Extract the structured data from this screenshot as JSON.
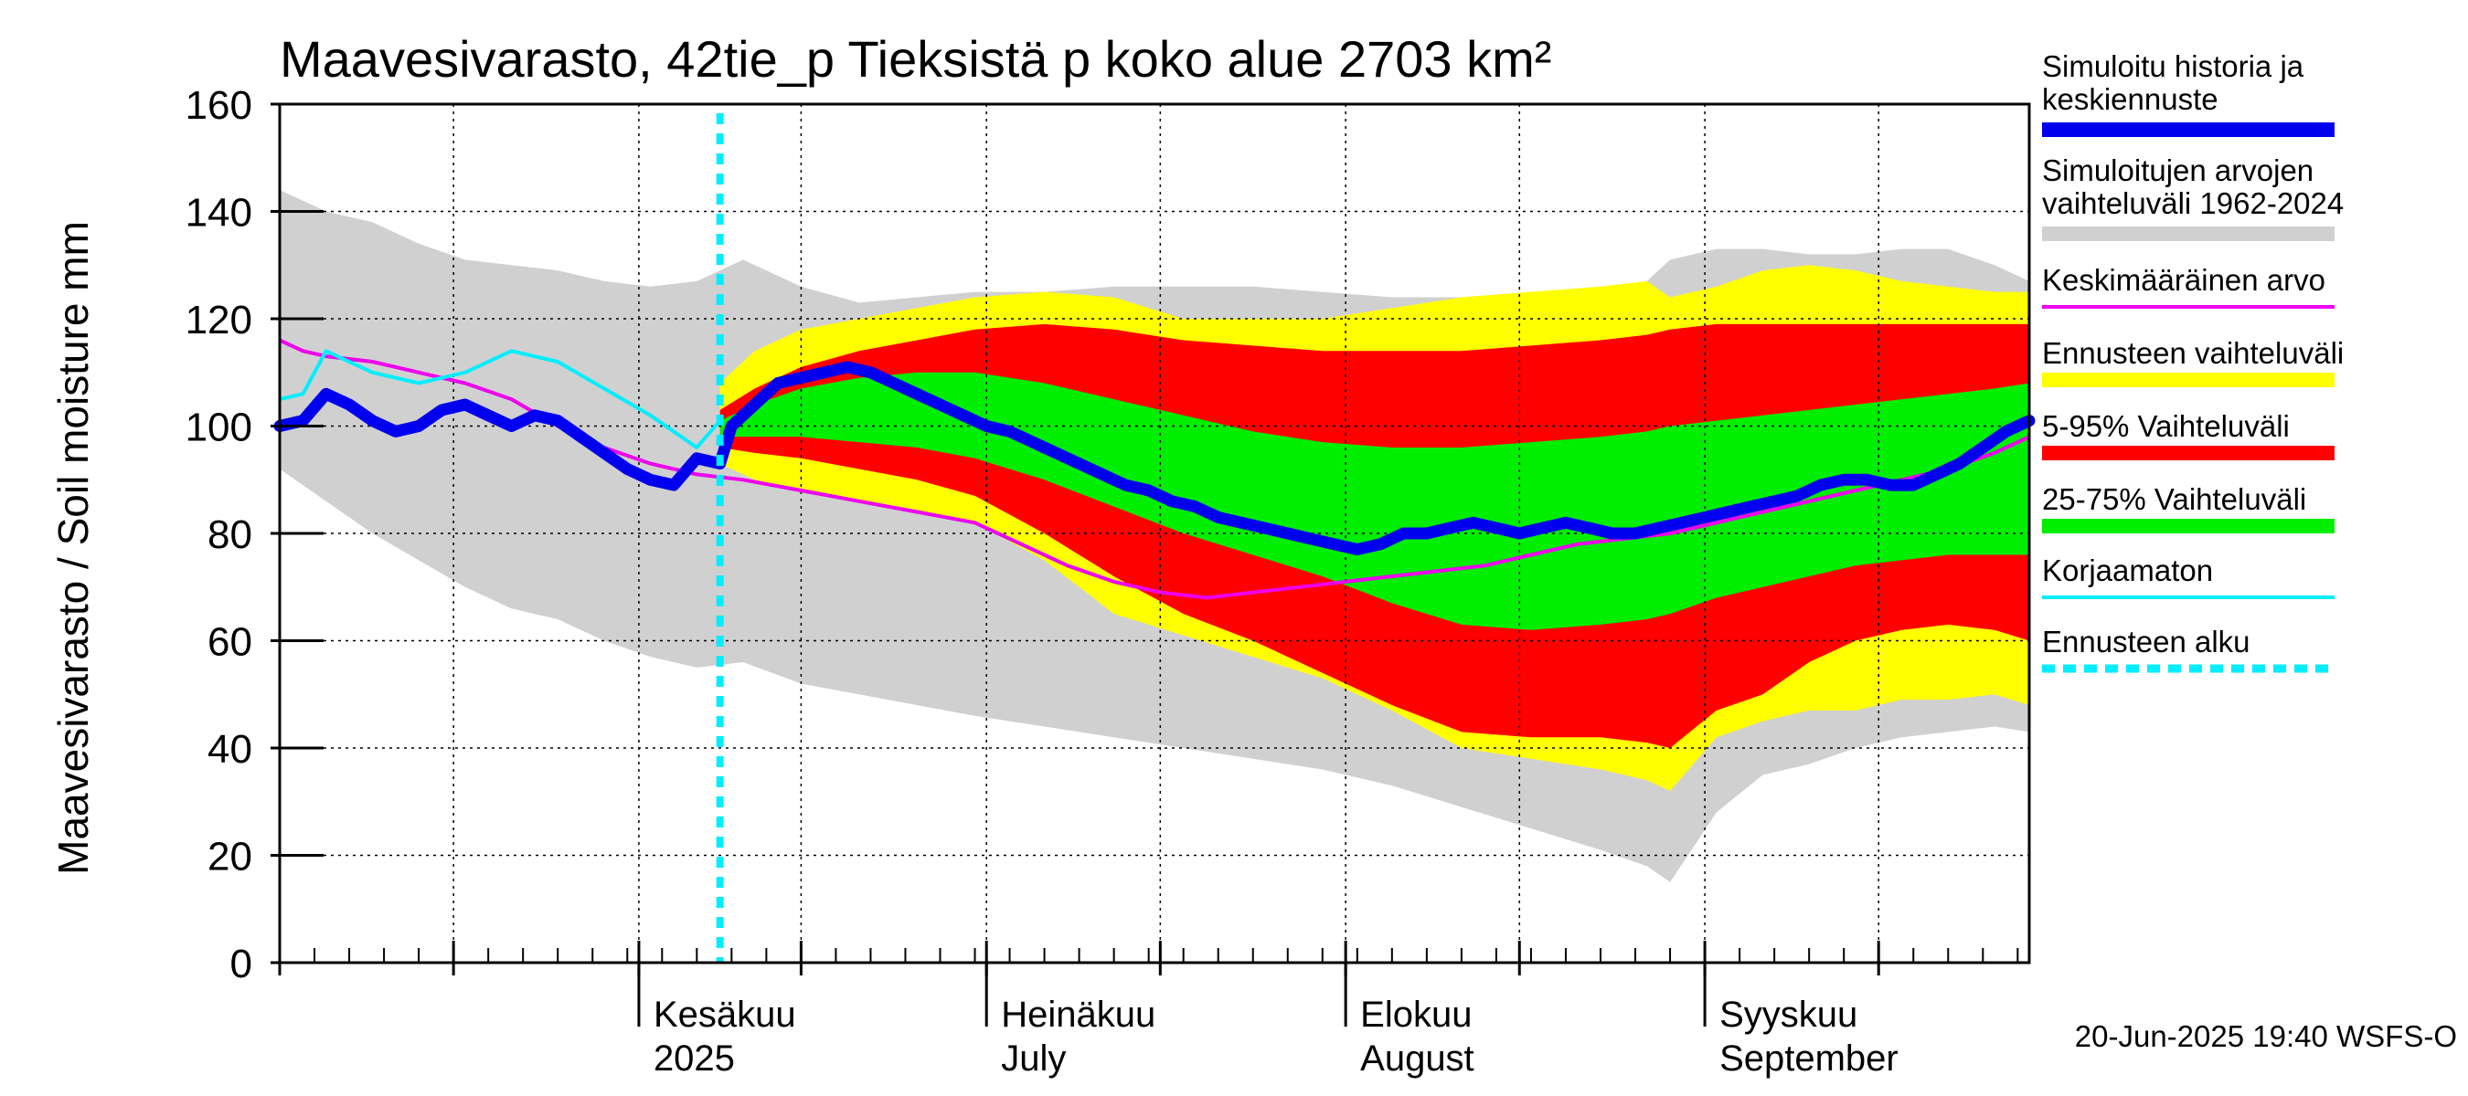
{
  "chart_data": {
    "type": "area",
    "title": "Maavesivarasto, 42tie_p Tieksistä p koko alue 2703 km²",
    "ylabel": "Maavesivarasto / Soil moisture   mm",
    "ylim": [
      0,
      160
    ],
    "yticks": [
      "0",
      "20",
      "40",
      "60",
      "80",
      "100",
      "120",
      "140",
      "160"
    ],
    "x_unit": "days since 2025-05-01",
    "xlim": [
      0,
      151
    ],
    "forecast_start_day": 38,
    "months": [
      {
        "name": "Kesäkuu",
        "sub": "2025",
        "day": 31
      },
      {
        "name": "Heinäkuu",
        "sub": "July",
        "day": 61
      },
      {
        "name": "Elokuu",
        "sub": "August",
        "day": 92
      },
      {
        "name": "Syyskuu",
        "sub": "September",
        "day": 123
      }
    ],
    "legend": [
      {
        "label": "Simuloitu historia ja",
        "label2": "keskiennuste",
        "color": "#0000ee",
        "kind": "line"
      },
      {
        "label": "Simuloitujen arvojen",
        "label2": "vaihteluväli 1962-2024",
        "color": "#d0d0d0",
        "kind": "band"
      },
      {
        "label": "Keskimääräinen arvo",
        "label2": "",
        "color": "#ee00ee",
        "kind": "thin"
      },
      {
        "label": "Ennusteen vaihteluväli",
        "label2": "",
        "color": "#ffff00",
        "kind": "band"
      },
      {
        "label": "5-95% Vaihteluväli",
        "label2": "",
        "color": "#ff0000",
        "kind": "band"
      },
      {
        "label": "25-75% Vaihteluväli",
        "label2": "",
        "color": "#00ee00",
        "kind": "band"
      },
      {
        "label": "Korjaamaton",
        "label2": "",
        "color": "#00eeff",
        "kind": "thin"
      },
      {
        "label": "Ennusteen alku",
        "label2": "",
        "color": "#00eeff",
        "kind": "dash"
      }
    ],
    "series": {
      "hist_range": {
        "x": [
          0,
          4,
          8,
          12,
          16,
          20,
          24,
          28,
          32,
          36,
          40,
          45,
          50,
          55,
          60,
          66,
          72,
          78,
          84,
          90,
          96,
          102,
          108,
          114,
          118,
          120,
          124,
          128,
          132,
          136,
          140,
          144,
          148,
          151
        ],
        "low": [
          92,
          86,
          80,
          75,
          70,
          66,
          64,
          60,
          57,
          55,
          56,
          52,
          50,
          48,
          46,
          44,
          42,
          40,
          38,
          36,
          33,
          29,
          25,
          21,
          18,
          15,
          28,
          35,
          37,
          40,
          42,
          43,
          44,
          43
        ],
        "high": [
          144,
          140,
          138,
          134,
          131,
          130,
          129,
          127,
          126,
          127,
          131,
          126,
          123,
          124,
          125,
          125,
          126,
          126,
          126,
          125,
          124,
          124,
          125,
          125,
          127,
          131,
          133,
          133,
          132,
          132,
          133,
          133,
          130,
          127
        ]
      },
      "yellow": {
        "x": [
          38,
          41,
          45,
          50,
          55,
          60,
          66,
          72,
          78,
          84,
          90,
          96,
          102,
          108,
          114,
          118,
          120,
          124,
          128,
          132,
          136,
          140,
          144,
          148,
          151
        ],
        "low": [
          93,
          90,
          88,
          86,
          84,
          82,
          75,
          65,
          61,
          57,
          53,
          47,
          40,
          38,
          36,
          34,
          32,
          42,
          45,
          47,
          47,
          49,
          49,
          50,
          48
        ],
        "high": [
          108,
          114,
          118,
          120,
          122,
          124,
          125,
          124,
          120,
          120,
          120,
          122,
          124,
          125,
          126,
          127,
          124,
          126,
          129,
          130,
          129,
          127,
          126,
          125,
          125
        ]
      },
      "red": {
        "x": [
          38,
          41,
          45,
          50,
          55,
          60,
          66,
          72,
          78,
          84,
          90,
          96,
          102,
          108,
          114,
          118,
          120,
          124,
          128,
          132,
          136,
          140,
          144,
          148,
          151
        ],
        "low": [
          96,
          95,
          94,
          92,
          90,
          87,
          80,
          72,
          65,
          60,
          54,
          48,
          43,
          42,
          42,
          41,
          40,
          47,
          50,
          56,
          60,
          62,
          63,
          62,
          60
        ],
        "high": [
          103,
          107,
          111,
          114,
          116,
          118,
          119,
          118,
          116,
          115,
          114,
          114,
          114,
          115,
          116,
          117,
          118,
          119,
          119,
          119,
          119,
          119,
          119,
          119,
          119
        ]
      },
      "green": {
        "x": [
          38,
          41,
          45,
          50,
          55,
          60,
          66,
          72,
          78,
          84,
          90,
          96,
          102,
          108,
          114,
          118,
          120,
          124,
          128,
          132,
          136,
          140,
          144,
          148,
          151
        ],
        "low": [
          98,
          98,
          98,
          97,
          96,
          94,
          90,
          85,
          80,
          76,
          72,
          67,
          63,
          62,
          63,
          64,
          65,
          68,
          70,
          72,
          74,
          75,
          76,
          76,
          76
        ],
        "high": [
          101,
          104,
          107,
          109,
          110,
          110,
          108,
          105,
          102,
          99,
          97,
          96,
          96,
          97,
          98,
          99,
          100,
          101,
          102,
          103,
          104,
          105,
          106,
          107,
          108
        ]
      },
      "mean": {
        "x": [
          0,
          2,
          4,
          8,
          12,
          16,
          20,
          24,
          28,
          32,
          36,
          40,
          45,
          50,
          55,
          60,
          64,
          68,
          72,
          76,
          80,
          84,
          88,
          92,
          96,
          100,
          104,
          108,
          112,
          116,
          120,
          124,
          128,
          132,
          136,
          140,
          144,
          148,
          151
        ],
        "y": [
          116,
          114,
          113,
          112,
          110,
          108,
          105,
          100,
          96,
          93,
          91,
          90,
          88,
          86,
          84,
          82,
          78,
          74,
          71,
          69,
          68,
          69,
          70,
          71,
          72,
          73,
          74,
          76,
          78,
          79,
          80,
          82,
          84,
          86,
          88,
          90,
          92,
          95,
          98
        ]
      },
      "uncorrected": {
        "x": [
          0,
          2,
          4,
          8,
          12,
          16,
          20,
          24,
          28,
          32,
          36,
          38
        ],
        "y": [
          105,
          106,
          114,
          110,
          108,
          110,
          114,
          112,
          107,
          102,
          96,
          101
        ]
      },
      "main": {
        "x": [
          0,
          2,
          4,
          6,
          8,
          10,
          12,
          14,
          16,
          18,
          20,
          22,
          24,
          26,
          28,
          30,
          32,
          34,
          36,
          38,
          39,
          41,
          43,
          45,
          47,
          49,
          51,
          53,
          55,
          57,
          59,
          61,
          63,
          65,
          67,
          69,
          71,
          73,
          75,
          77,
          79,
          81,
          83,
          85,
          87,
          89,
          91,
          93,
          95,
          97,
          99,
          101,
          103,
          105,
          107,
          109,
          111,
          113,
          115,
          117,
          119,
          121,
          123,
          125,
          127,
          129,
          131,
          133,
          135,
          137,
          139,
          141,
          143,
          145,
          147,
          149,
          151
        ],
        "y": [
          100,
          101,
          106,
          104,
          101,
          99,
          100,
          103,
          104,
          102,
          100,
          102,
          101,
          98,
          95,
          92,
          90,
          89,
          94,
          93,
          100,
          104,
          108,
          109,
          110,
          111,
          110,
          108,
          106,
          104,
          102,
          100,
          99,
          97,
          95,
          93,
          91,
          89,
          88,
          86,
          85,
          83,
          82,
          81,
          80,
          79,
          78,
          77,
          78,
          80,
          80,
          81,
          82,
          81,
          80,
          81,
          82,
          81,
          80,
          80,
          81,
          82,
          83,
          84,
          85,
          86,
          87,
          89,
          90,
          90,
          89,
          89,
          91,
          93,
          96,
          99,
          101
        ]
      }
    }
  },
  "footer": "20-Jun-2025 19:40 WSFS-O"
}
